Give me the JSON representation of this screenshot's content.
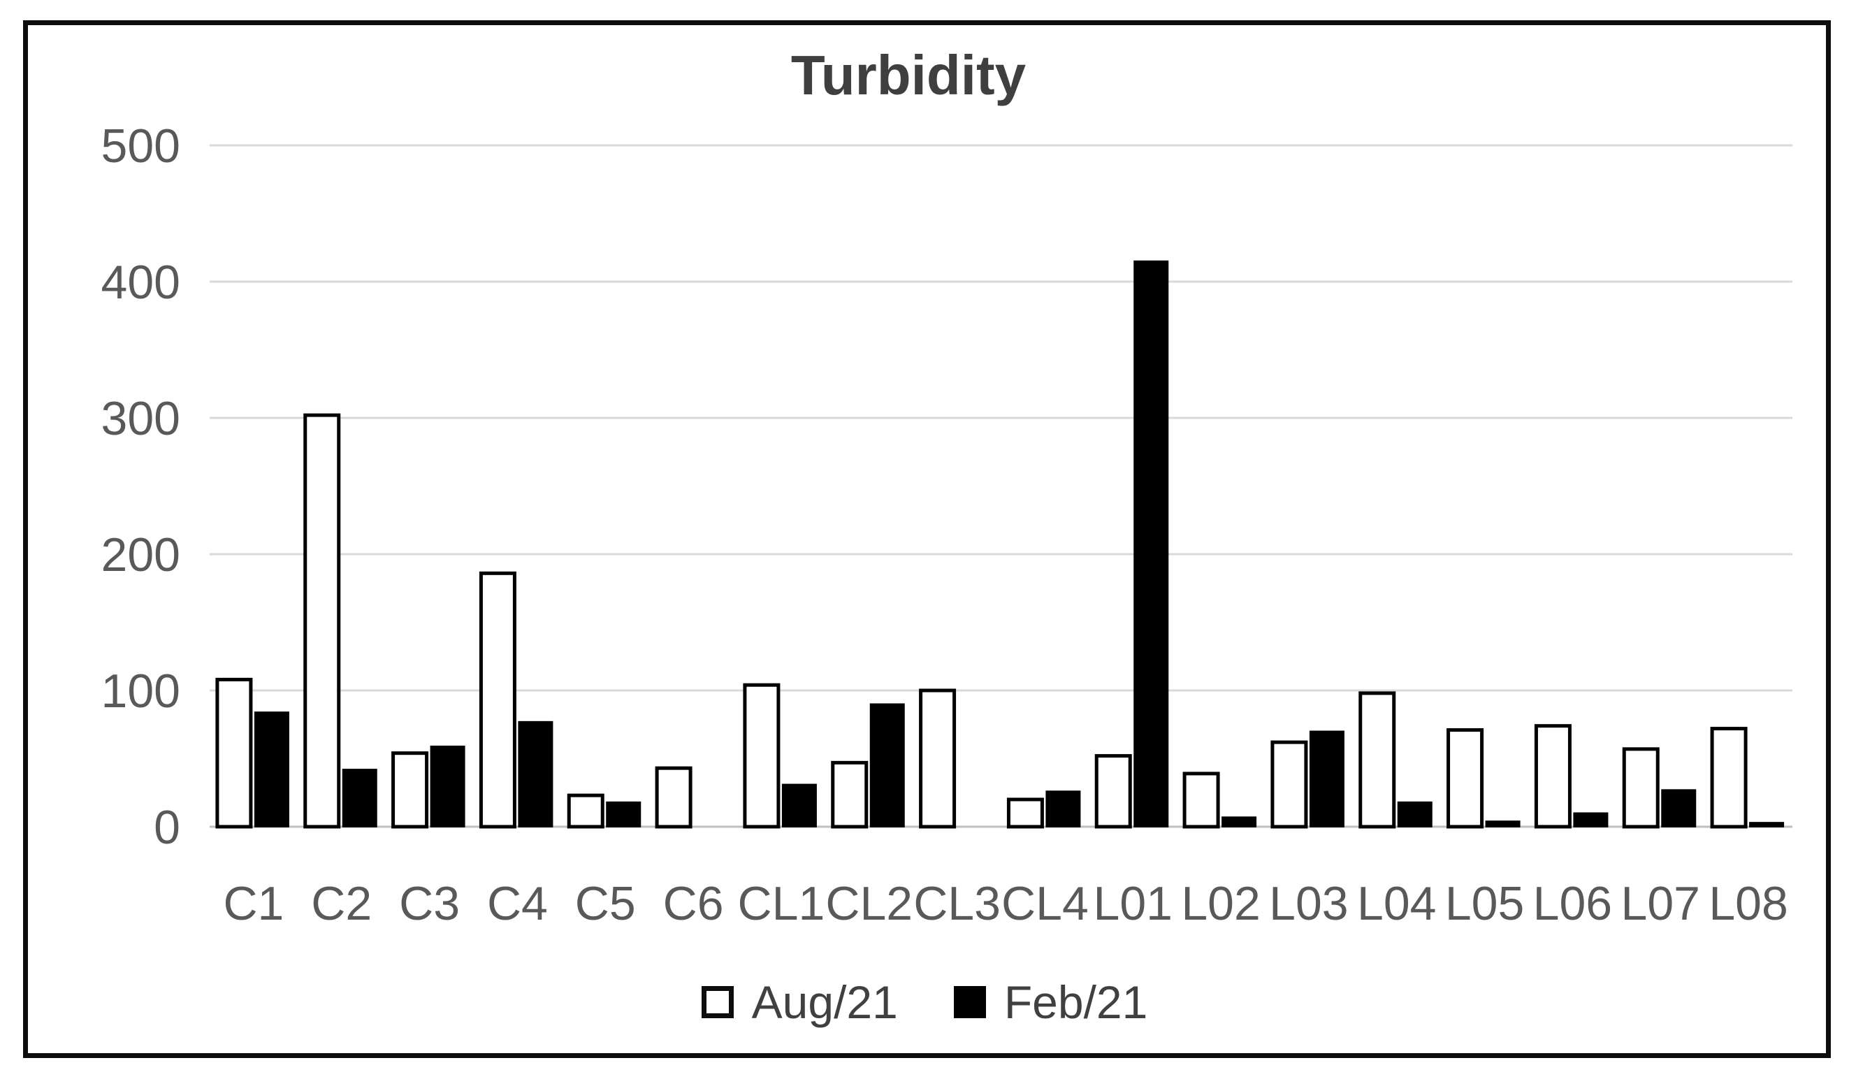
{
  "chart_data": {
    "type": "bar",
    "title": "Turbidity",
    "categories": [
      "C1",
      "C2",
      "C3",
      "C4",
      "C5",
      "C6",
      "CL1",
      "CL2",
      "CL3",
      "CL4",
      "L01",
      "L02",
      "L03",
      "L04",
      "L05",
      "L06",
      "L07",
      "L08"
    ],
    "series": [
      {
        "name": "Aug/21",
        "fill": "#ffffff",
        "values": [
          108,
          302,
          54,
          186,
          23,
          43,
          104,
          47,
          100,
          20,
          52,
          39,
          62,
          98,
          71,
          74,
          57,
          72
        ]
      },
      {
        "name": "Feb/21",
        "fill": "#000000",
        "values": [
          84,
          42,
          59,
          77,
          18,
          0,
          31,
          90,
          0,
          26,
          415,
          7,
          70,
          18,
          4,
          10,
          27,
          3
        ]
      }
    ],
    "ylim": [
      0,
      500
    ],
    "yticks": [
      0,
      100,
      200,
      300,
      400,
      500
    ],
    "grid": "horizontal-gridlines-on",
    "legend_position": "bottom",
    "colors": {
      "title_text": "#3f3f3f",
      "axis_text": "#595959",
      "gridline": "#d9d9d9",
      "baseline": "#bfbfbf",
      "bar_outline": "#000000",
      "aug_fill": "#ffffff",
      "feb_fill": "#000000",
      "frame_border": "#0d0d0d"
    }
  }
}
